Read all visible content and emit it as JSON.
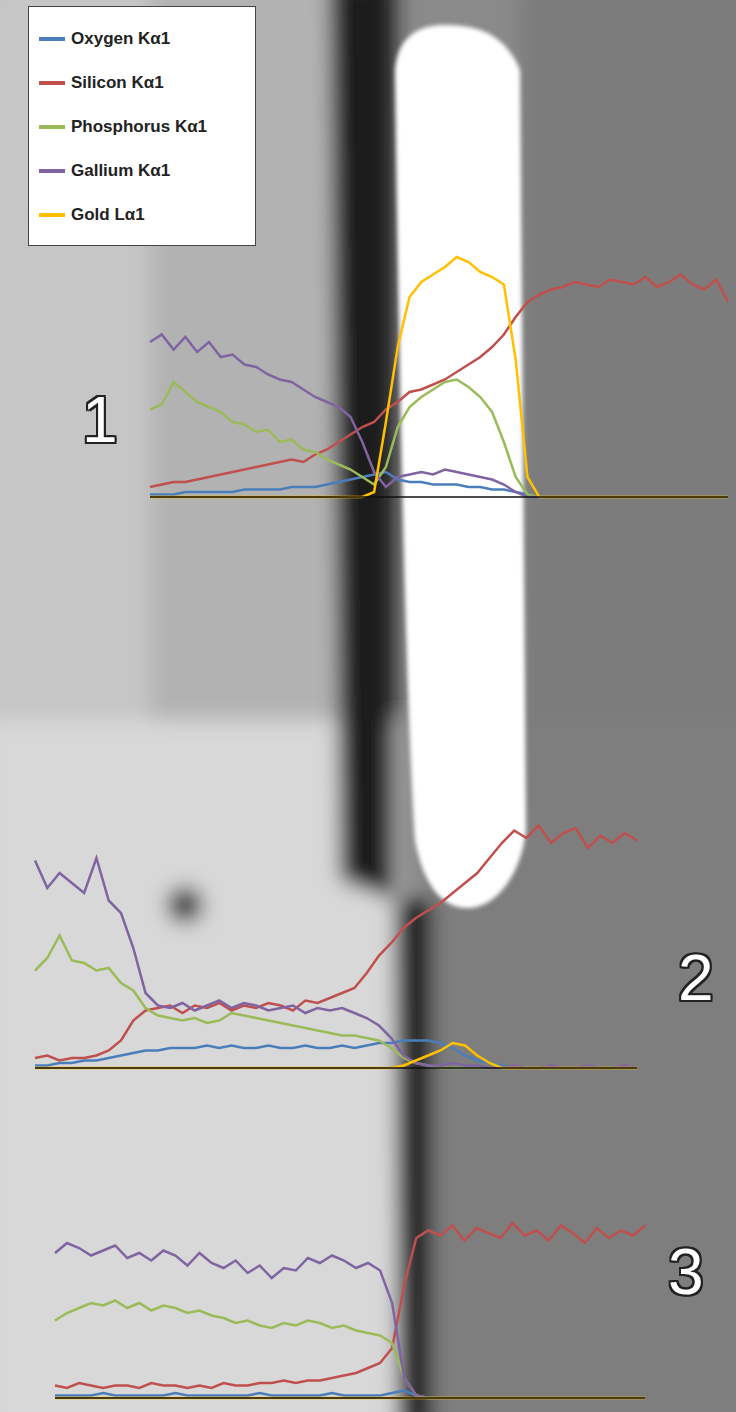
{
  "chart_data": [
    {
      "type": "line",
      "title": "1",
      "tick_labels": false,
      "grid": false,
      "legend": "upper left",
      "x": [
        0,
        1,
        2,
        3,
        4,
        5,
        6,
        7,
        8,
        9,
        10,
        11,
        12,
        13,
        14,
        15,
        16,
        17,
        18,
        19,
        20,
        21,
        22,
        23,
        24,
        25,
        26,
        27,
        28,
        29,
        30,
        31,
        32,
        33,
        34,
        35,
        36,
        37,
        38,
        39,
        40,
        41,
        42,
        43,
        44,
        45,
        46,
        47,
        48,
        49
      ],
      "xlim": [
        0,
        49
      ],
      "ylim": [
        0,
        100
      ],
      "series": [
        {
          "name": "Oxygen Kα1",
          "color": "#4a7ebb",
          "values": [
            1,
            1,
            1,
            2,
            2,
            2,
            2,
            2,
            3,
            3,
            3,
            3,
            4,
            4,
            4,
            5,
            6,
            7,
            8,
            9,
            10,
            7,
            6,
            6,
            5,
            5,
            5,
            4,
            4,
            3,
            3,
            2,
            1,
            0,
            0,
            0,
            0,
            0,
            0,
            0,
            0,
            0,
            0,
            0,
            0,
            0,
            0,
            0,
            0,
            0
          ]
        },
        {
          "name": "Silicon Kα1",
          "color": "#c0504d",
          "values": [
            4,
            5,
            6,
            6,
            7,
            8,
            9,
            10,
            11,
            12,
            13,
            14,
            15,
            14,
            17,
            19,
            22,
            25,
            28,
            30,
            35,
            38,
            42,
            43,
            45,
            47,
            50,
            53,
            56,
            60,
            65,
            72,
            78,
            81,
            83,
            84,
            86,
            85,
            84,
            87,
            86,
            85,
            88,
            84,
            86,
            89,
            85,
            83,
            87,
            78
          ]
        },
        {
          "name": "Phosphorus Kα1",
          "color": "#9bbb59",
          "values": [
            35,
            37,
            46,
            42,
            38,
            36,
            34,
            30,
            29,
            26,
            27,
            22,
            23,
            19,
            18,
            15,
            13,
            11,
            8,
            5,
            12,
            28,
            36,
            40,
            43,
            46,
            47,
            44,
            40,
            34,
            22,
            8,
            1,
            0,
            0,
            0,
            0,
            0,
            0,
            0,
            0,
            0,
            0,
            0,
            0,
            0,
            0,
            0,
            0,
            0
          ]
        },
        {
          "name": "Gallium Kα1",
          "color": "#8064a2",
          "values": [
            62,
            65,
            59,
            64,
            58,
            62,
            56,
            57,
            53,
            52,
            49,
            47,
            46,
            43,
            40,
            38,
            36,
            32,
            22,
            10,
            4,
            8,
            9,
            10,
            9,
            11,
            10,
            9,
            8,
            7,
            5,
            2,
            0,
            0,
            0,
            0,
            0,
            0,
            0,
            0,
            0,
            0,
            0,
            0,
            0,
            0,
            0,
            0,
            0,
            0
          ]
        },
        {
          "name": "Gold Lα1",
          "color": "#ffc000",
          "values": [
            0,
            0,
            0,
            0,
            0,
            0,
            0,
            0,
            0,
            0,
            0,
            0,
            0,
            0,
            0,
            0,
            0,
            0,
            0,
            2,
            30,
            60,
            80,
            86,
            89,
            92,
            96,
            94,
            90,
            88,
            85,
            55,
            8,
            0,
            0,
            0,
            0,
            0,
            0,
            0,
            0,
            0,
            0,
            0,
            0,
            0,
            0,
            0,
            0,
            0
          ]
        }
      ]
    },
    {
      "type": "line",
      "title": "2",
      "tick_labels": false,
      "grid": false,
      "x": [
        0,
        1,
        2,
        3,
        4,
        5,
        6,
        7,
        8,
        9,
        10,
        11,
        12,
        13,
        14,
        15,
        16,
        17,
        18,
        19,
        20,
        21,
        22,
        23,
        24,
        25,
        26,
        27,
        28,
        29,
        30,
        31,
        32,
        33,
        34,
        35,
        36,
        37,
        38,
        39,
        40,
        41,
        42,
        43,
        44,
        45,
        46,
        47,
        48,
        49
      ],
      "xlim": [
        0,
        49
      ],
      "ylim": [
        0,
        100
      ],
      "series": [
        {
          "name": "Oxygen Kα1",
          "color": "#4a7ebb",
          "values": [
            1,
            1,
            2,
            2,
            3,
            3,
            4,
            5,
            6,
            7,
            7,
            8,
            8,
            8,
            9,
            8,
            9,
            8,
            8,
            9,
            8,
            8,
            9,
            8,
            8,
            9,
            8,
            9,
            10,
            10,
            11,
            11,
            11,
            10,
            8,
            5,
            3,
            2,
            1,
            0,
            0,
            0,
            0,
            0,
            0,
            0,
            0,
            0,
            0,
            0
          ]
        },
        {
          "name": "Silicon Kα1",
          "color": "#c0504d",
          "values": [
            4,
            5,
            3,
            4,
            4,
            5,
            7,
            11,
            19,
            23,
            24,
            25,
            22,
            25,
            24,
            26,
            23,
            25,
            24,
            26,
            25,
            23,
            27,
            26,
            28,
            30,
            32,
            38,
            45,
            50,
            56,
            60,
            63,
            66,
            70,
            74,
            78,
            84,
            90,
            95,
            92,
            97,
            90,
            94,
            96,
            88,
            93,
            90,
            94,
            91
          ]
        },
        {
          "name": "Phosphorus Kα1",
          "color": "#9bbb59",
          "values": [
            39,
            44,
            53,
            43,
            42,
            39,
            40,
            34,
            31,
            24,
            21,
            20,
            19,
            20,
            18,
            19,
            22,
            21,
            20,
            19,
            18,
            17,
            16,
            15,
            14,
            13,
            13,
            12,
            11,
            8,
            4,
            2,
            1,
            0,
            0,
            0,
            0,
            0,
            0,
            0,
            0,
            0,
            0,
            0,
            0,
            0,
            0,
            0,
            0,
            0
          ]
        },
        {
          "name": "Gallium Kα1",
          "color": "#8064a2",
          "values": [
            83,
            72,
            78,
            74,
            70,
            84,
            67,
            62,
            48,
            30,
            25,
            24,
            26,
            23,
            25,
            27,
            24,
            26,
            25,
            23,
            24,
            25,
            22,
            24,
            23,
            24,
            22,
            20,
            17,
            12,
            5,
            2,
            1,
            1,
            2,
            1,
            1,
            0,
            0,
            1,
            0,
            0,
            1,
            0,
            0,
            1,
            0,
            0,
            1,
            0
          ]
        },
        {
          "name": "Gold Lα1",
          "color": "#ffc000",
          "values": [
            0,
            0,
            0,
            0,
            0,
            0,
            0,
            0,
            0,
            0,
            0,
            0,
            0,
            0,
            0,
            0,
            0,
            0,
            0,
            0,
            0,
            0,
            0,
            0,
            0,
            0,
            0,
            0,
            0,
            0,
            1,
            3,
            5,
            7,
            10,
            9,
            5,
            2,
            0,
            0,
            0,
            0,
            0,
            0,
            0,
            0,
            0,
            0,
            0,
            0
          ]
        }
      ]
    },
    {
      "type": "line",
      "title": "3",
      "tick_labels": false,
      "grid": false,
      "x": [
        0,
        1,
        2,
        3,
        4,
        5,
        6,
        7,
        8,
        9,
        10,
        11,
        12,
        13,
        14,
        15,
        16,
        17,
        18,
        19,
        20,
        21,
        22,
        23,
        24,
        25,
        26,
        27,
        28,
        29,
        30,
        31,
        32,
        33,
        34,
        35,
        36,
        37,
        38,
        39,
        40,
        41,
        42,
        43,
        44,
        45,
        46,
        47,
        48,
        49
      ],
      "xlim": [
        0,
        49
      ],
      "ylim": [
        0,
        100
      ],
      "series": [
        {
          "name": "Oxygen Kα1",
          "color": "#4a7ebb",
          "values": [
            1,
            1,
            1,
            1,
            2,
            1,
            1,
            1,
            1,
            1,
            2,
            1,
            1,
            1,
            1,
            1,
            1,
            2,
            1,
            1,
            1,
            1,
            1,
            2,
            1,
            1,
            1,
            1,
            2,
            3,
            1,
            0,
            0,
            0,
            0,
            0,
            0,
            0,
            0,
            0,
            0,
            0,
            0,
            0,
            0,
            0,
            0,
            0,
            0,
            0
          ]
        },
        {
          "name": "Silicon Kα1",
          "color": "#c0504d",
          "values": [
            5,
            4,
            6,
            5,
            4,
            5,
            5,
            4,
            6,
            5,
            5,
            4,
            5,
            4,
            6,
            5,
            5,
            6,
            6,
            7,
            6,
            7,
            7,
            8,
            9,
            10,
            12,
            14,
            20,
            45,
            64,
            67,
            65,
            69,
            63,
            68,
            66,
            64,
            70,
            65,
            67,
            63,
            69,
            66,
            62,
            68,
            64,
            67,
            65,
            69
          ]
        },
        {
          "name": "Phosphorus Kα1",
          "color": "#9bbb59",
          "values": [
            31,
            34,
            36,
            38,
            37,
            39,
            36,
            38,
            35,
            37,
            36,
            34,
            35,
            33,
            32,
            30,
            31,
            29,
            28,
            30,
            29,
            31,
            30,
            28,
            29,
            27,
            26,
            25,
            22,
            8,
            1,
            0,
            0,
            0,
            0,
            0,
            0,
            0,
            0,
            0,
            0,
            0,
            0,
            0,
            0,
            0,
            0,
            0,
            0,
            0
          ]
        },
        {
          "name": "Gallium Kα1",
          "color": "#8064a2",
          "values": [
            58,
            62,
            60,
            57,
            59,
            61,
            56,
            58,
            55,
            59,
            57,
            53,
            58,
            54,
            52,
            55,
            50,
            53,
            48,
            52,
            51,
            56,
            54,
            57,
            55,
            52,
            54,
            51,
            38,
            8,
            1,
            0,
            0,
            0,
            0,
            0,
            0,
            0,
            0,
            0,
            0,
            0,
            0,
            0,
            0,
            0,
            0,
            0,
            0,
            0
          ]
        },
        {
          "name": "Gold Lα1",
          "color": "#ffc000",
          "values": [
            0,
            0,
            0,
            0,
            0,
            0,
            0,
            0,
            0,
            0,
            0,
            0,
            0,
            0,
            0,
            0,
            0,
            0,
            0,
            0,
            0,
            0,
            0,
            0,
            0,
            0,
            0,
            0,
            0,
            0,
            0,
            0,
            0,
            0,
            0,
            0,
            0,
            0,
            0,
            0,
            0,
            0,
            0,
            0,
            0,
            0,
            0,
            0,
            0,
            0
          ]
        }
      ]
    }
  ]
}
